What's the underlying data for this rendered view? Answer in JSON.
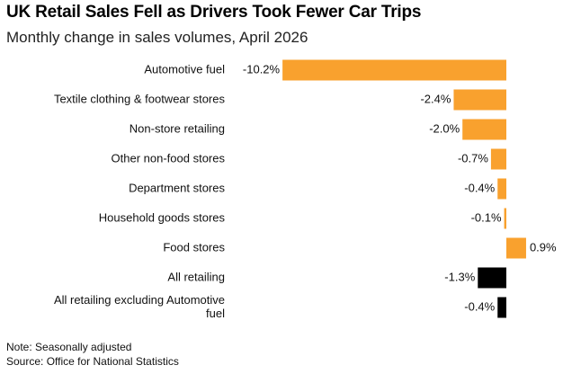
{
  "chart_data": {
    "type": "bar",
    "orientation": "horizontal",
    "title": "UK Retail Sales Fell as Drivers Took Fewer Car Trips",
    "subtitle": "Monthly change in sales volumes, April 2026",
    "categories": [
      [
        "Automotive fuel"
      ],
      [
        "Textile clothing & footwear stores"
      ],
      [
        "Non-store retailing"
      ],
      [
        "Other non-food stores"
      ],
      [
        "Department stores"
      ],
      [
        "Household goods stores"
      ],
      [
        "Food stores"
      ],
      [
        "All retailing"
      ],
      [
        "All retailing excluding Automotive",
        "fuel"
      ]
    ],
    "values": [
      -10.2,
      -2.4,
      -2.0,
      -0.7,
      -0.4,
      -0.1,
      0.9,
      -1.3,
      -0.4
    ],
    "value_labels": [
      "-10.2%",
      "-2.4%",
      "-2.0%",
      "-0.7%",
      "-0.4%",
      "-0.1%",
      "0.9%",
      "-1.3%",
      "-0.4%"
    ],
    "bar_colors": [
      "#f9a12e",
      "#f9a12e",
      "#f9a12e",
      "#f9a12e",
      "#f9a12e",
      "#f9a12e",
      "#f9a12e",
      "#000000",
      "#000000"
    ],
    "grid": false,
    "legend": "none"
  },
  "notes": {
    "note": "Note: Seasonally adjusted",
    "source": "Source: Office for National Statistics"
  }
}
